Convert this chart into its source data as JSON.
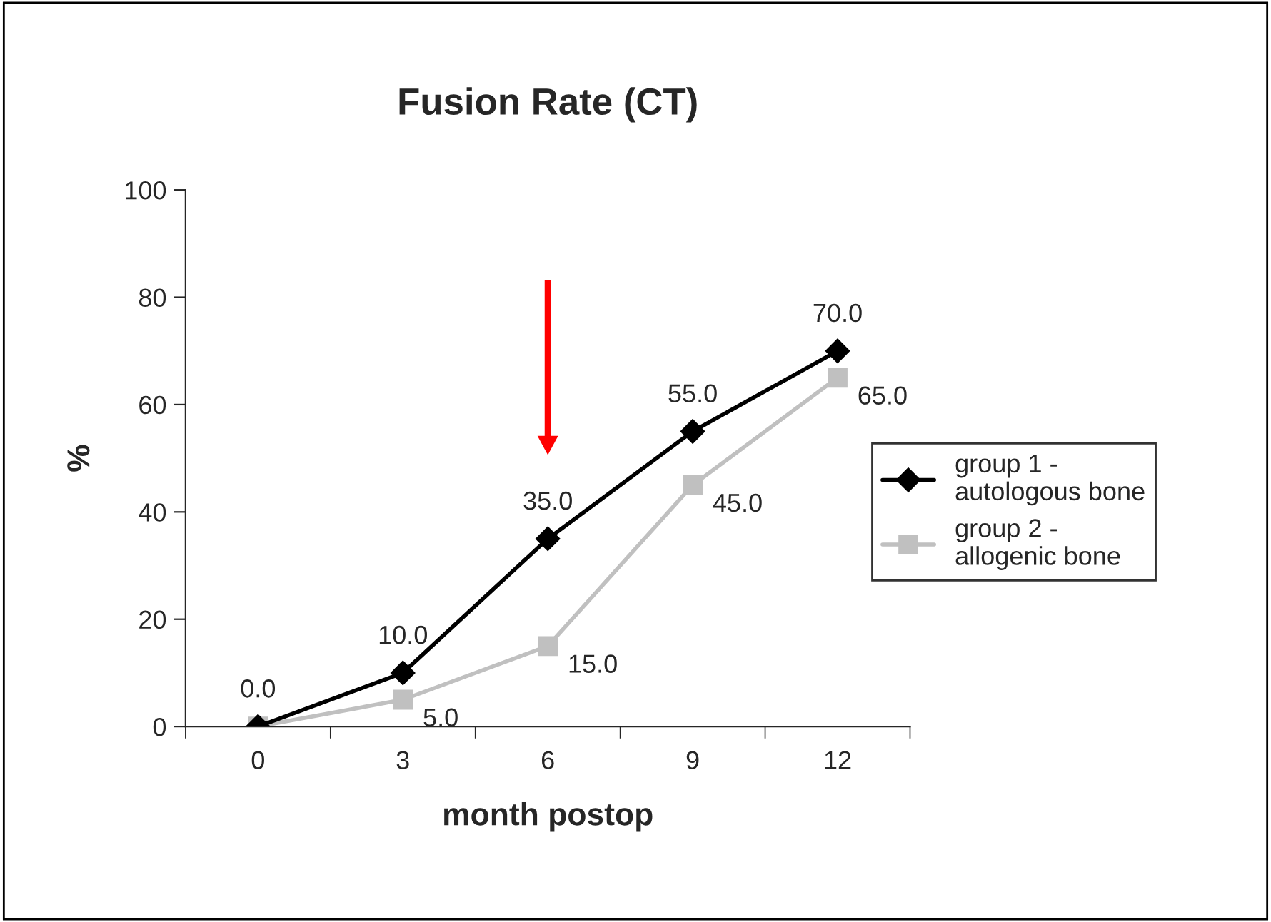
{
  "chart_data": {
    "type": "line",
    "title": "Fusion Rate (CT)",
    "xlabel": "month postop",
    "ylabel": "%",
    "categories": [
      "0",
      "3",
      "6",
      "9",
      "12"
    ],
    "series": [
      {
        "name": "group 1 -\nautologous bone",
        "color": "#000000",
        "marker": "diamond",
        "values": [
          0,
          10,
          35,
          55,
          70
        ],
        "value_labels": [
          "0.0",
          "10.0",
          "35.0",
          "55.0",
          "70.0"
        ]
      },
      {
        "name": "group 2 -\nallogenic bone",
        "color": "#c0c0c0",
        "marker": "square",
        "values": [
          0,
          5,
          15,
          45,
          65
        ],
        "value_labels": [
          null,
          "5.0",
          "15.0",
          "45.0",
          "65.0"
        ]
      }
    ],
    "ylim": [
      0,
      100
    ],
    "yticks": [
      0,
      20,
      40,
      60,
      80,
      100
    ],
    "grid": false,
    "legend": "right",
    "line_style": "solid"
  }
}
